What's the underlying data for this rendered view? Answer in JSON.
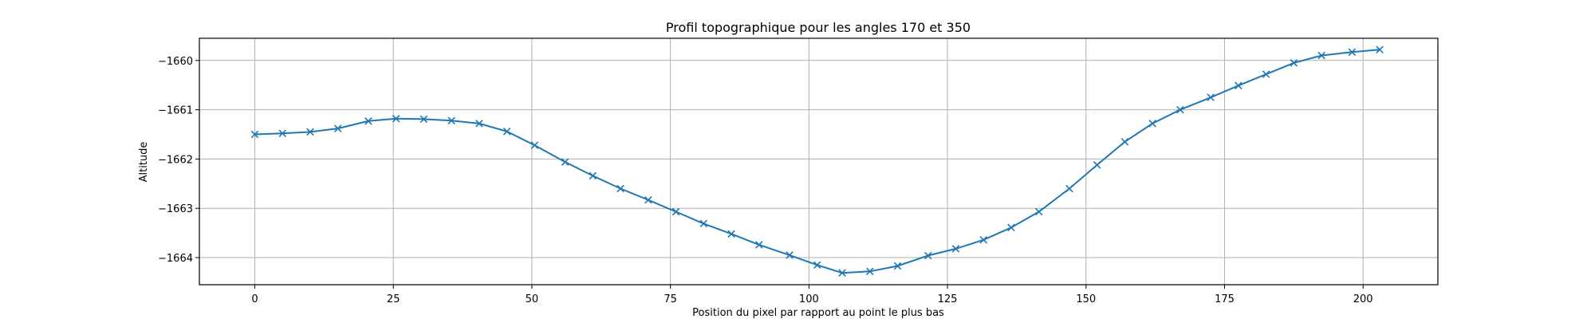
{
  "chart_data": {
    "type": "line",
    "title": "Profil topographique pour les angles 170 et 350",
    "xlabel": "Position du pixel par rapport au point le plus bas",
    "ylabel": "Altitude",
    "xlim": [
      -10,
      213.5
    ],
    "ylim": [
      -1664.55,
      -1659.55
    ],
    "xticks": [
      0,
      25,
      50,
      75,
      100,
      125,
      150,
      175,
      200
    ],
    "yticks": [
      -1664,
      -1663,
      -1662,
      -1661,
      -1660
    ],
    "ytick_labels": [
      "−1664",
      "−1663",
      "−1662",
      "−1661",
      "−1660"
    ],
    "grid": true,
    "marker": "x",
    "color": "#1f77b4",
    "series": [
      {
        "x": [
          0,
          5,
          10,
          15,
          20.5,
          25.5,
          30.5,
          35.5,
          40.5,
          45.5,
          50.5,
          56,
          61,
          66,
          71,
          76,
          81,
          86,
          91,
          96.5,
          101.5,
          106,
          111,
          116,
          121.5,
          126.5,
          131.5,
          136.5,
          141.5,
          147,
          152,
          157,
          162,
          167,
          172.5,
          177.5,
          182.5,
          187.5,
          192.5,
          198,
          203
        ],
        "y": [
          -1661.5,
          -1661.48,
          -1661.45,
          -1661.38,
          -1661.23,
          -1661.18,
          -1661.19,
          -1661.22,
          -1661.28,
          -1661.44,
          -1661.72,
          -1662.06,
          -1662.34,
          -1662.6,
          -1662.83,
          -1663.07,
          -1663.31,
          -1663.52,
          -1663.74,
          -1663.95,
          -1664.15,
          -1664.31,
          -1664.28,
          -1664.17,
          -1663.96,
          -1663.82,
          -1663.64,
          -1663.39,
          -1663.07,
          -1662.6,
          -1662.12,
          -1661.65,
          -1661.28,
          -1661.0,
          -1660.75,
          -1660.51,
          -1660.28,
          -1660.05,
          -1659.9,
          -1659.83,
          -1659.78
        ]
      }
    ]
  }
}
